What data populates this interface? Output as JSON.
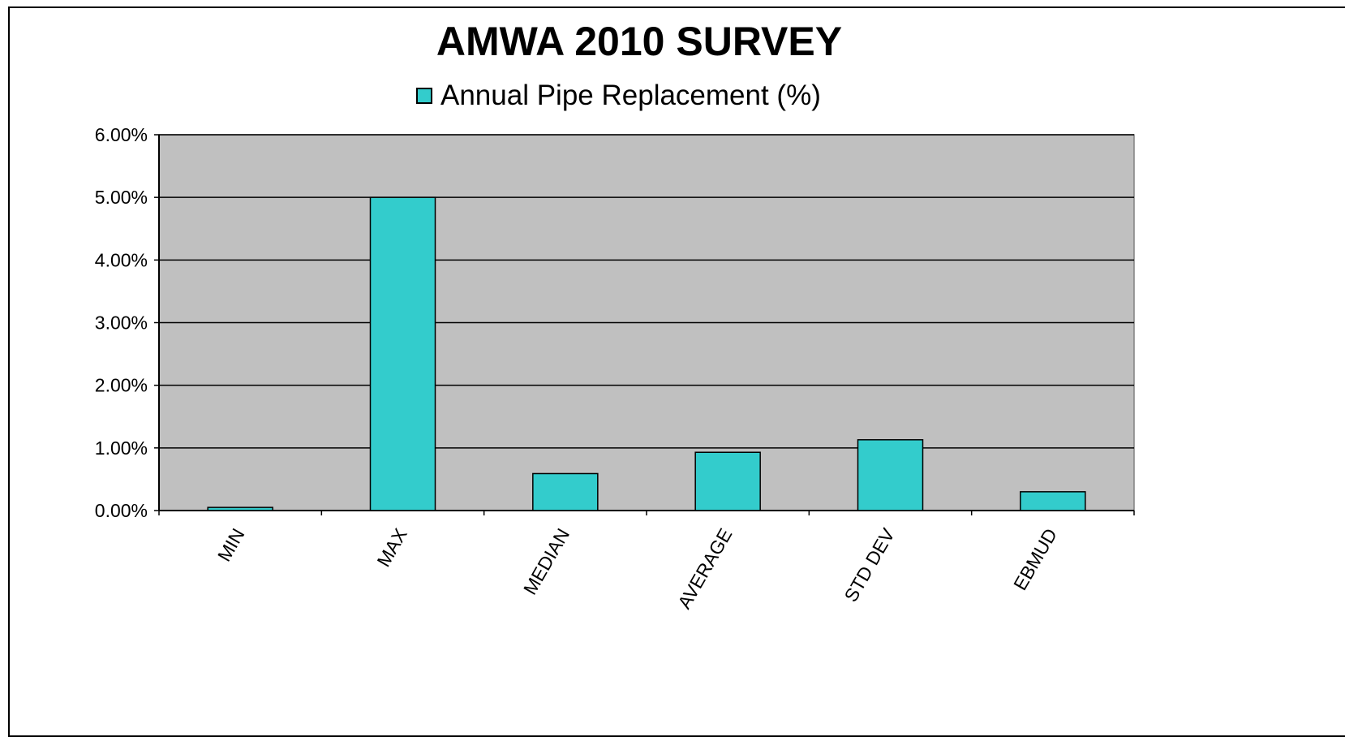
{
  "chart_data": {
    "type": "bar",
    "title": "AMWA 2010 SURVEY",
    "categories": [
      "MIN",
      "MAX",
      "MEDIAN",
      "AVERAGE",
      "STD DEV",
      "EBMUD"
    ],
    "series": [
      {
        "name": "Annual Pipe Replacement (%)",
        "values": [
          0.05,
          5.0,
          0.59,
          0.93,
          1.13,
          0.3
        ],
        "color": "#33CCCC"
      }
    ],
    "ylim": [
      0,
      6
    ],
    "yticks": [
      0,
      1,
      2,
      3,
      4,
      5,
      6
    ],
    "ytick_labels": [
      "0.00%",
      "1.00%",
      "2.00%",
      "3.00%",
      "4.00%",
      "5.00%",
      "6.00%"
    ],
    "grid": true,
    "legend_position": "top-center",
    "plot_background": "#C0C0C0"
  }
}
